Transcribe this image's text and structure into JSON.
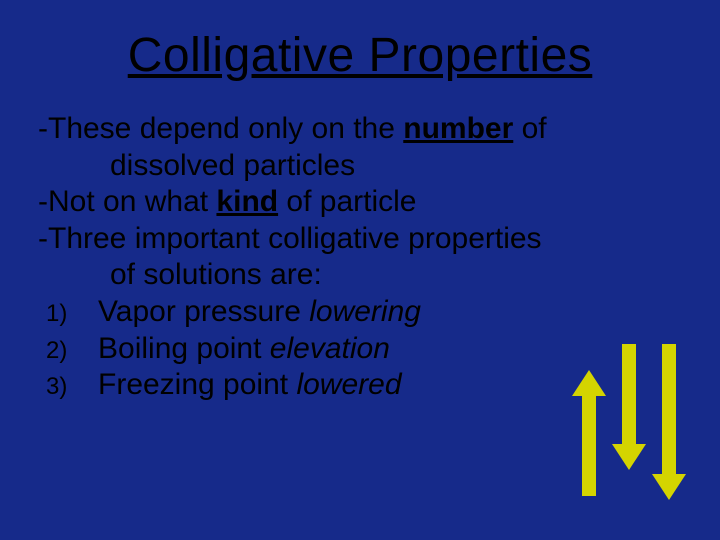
{
  "background_color": "#162a8a",
  "text_color": "#000000",
  "arrow_color": "#d4d400",
  "title": "Colligative Properties",
  "title_fontsize": 48,
  "body_fontsize": 30,
  "line1_prefix": "-These depend only on the ",
  "line1_emph": "number",
  "line1_suffix": " of",
  "line1_cont": "dissolved particles",
  "line2_prefix": "-Not on what ",
  "line2_emph": "kind",
  "line2_suffix": " of particle",
  "line3": "-Three important colligative properties",
  "line3_cont": "of solutions are:",
  "num1": "1)",
  "item1_a": "Vapor pressure ",
  "item1_b": "lowering",
  "num2": "2)",
  "item2_a": "Boiling point ",
  "item2_b": "elevation",
  "num3": "3)",
  "item3_a": "Freezing point ",
  "item3_b": "lowered",
  "arrows": {
    "color": "#d4d400",
    "count": 3,
    "directions": [
      "up",
      "down",
      "down"
    ],
    "shaft_width": 14,
    "head_width": 34
  }
}
